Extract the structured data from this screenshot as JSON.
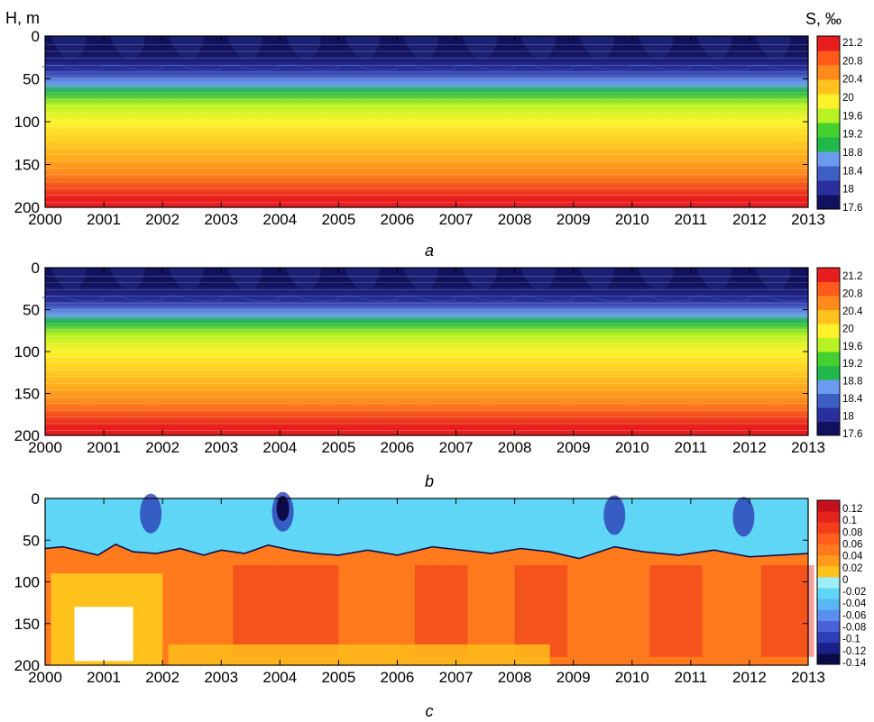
{
  "labels": {
    "y_axis": "H, m",
    "colorbar_unit": "S, ‰"
  },
  "chart_data": [
    {
      "type": "heatmap",
      "panel_letter": "a",
      "x_ticks": [
        "2000",
        "2001",
        "2002",
        "2003",
        "2004",
        "2005",
        "2006",
        "2007",
        "2008",
        "2009",
        "2010",
        "2011",
        "2012",
        "2013"
      ],
      "xlim": [
        2000,
        2013
      ],
      "y_ticks": [
        "0",
        "50",
        "100",
        "150",
        "200"
      ],
      "ylim": [
        200,
        0
      ],
      "colorbar_ticks": [
        "21.2",
        "20.8",
        "20.4",
        "20",
        "19.6",
        "19.2",
        "18.8",
        "18.4",
        "18",
        "17.6"
      ],
      "colorbar_range": [
        17.6,
        21.4
      ],
      "profile_depth": [
        0,
        20,
        40,
        55,
        65,
        80,
        100,
        130,
        160,
        190,
        200
      ],
      "profile_value": [
        17.75,
        17.9,
        18.2,
        18.55,
        18.95,
        19.5,
        19.95,
        20.4,
        20.75,
        21.1,
        21.2
      ],
      "colors": [
        "#11115e",
        "#29309e",
        "#3d5fc4",
        "#6b9bef",
        "#21b84a",
        "#44d12f",
        "#b6f224",
        "#fff22b",
        "#ffc11e",
        "#ff8a1c",
        "#ff5a1a",
        "#e81d1d"
      ]
    },
    {
      "type": "heatmap",
      "panel_letter": "b",
      "x_ticks": [
        "2000",
        "2001",
        "2002",
        "2003",
        "2004",
        "2005",
        "2006",
        "2007",
        "2008",
        "2009",
        "2010",
        "2011",
        "2012",
        "2013"
      ],
      "xlim": [
        2000,
        2013
      ],
      "y_ticks": [
        "0",
        "50",
        "100",
        "150",
        "200"
      ],
      "ylim": [
        200,
        0
      ],
      "colorbar_ticks": [
        "21.2",
        "20.8",
        "20.4",
        "20",
        "19.6",
        "19.2",
        "18.8",
        "18.4",
        "18",
        "17.6"
      ],
      "colorbar_range": [
        17.6,
        21.4
      ],
      "profile_depth": [
        0,
        20,
        40,
        55,
        65,
        80,
        100,
        130,
        160,
        190,
        200
      ],
      "profile_value": [
        17.75,
        17.9,
        18.2,
        18.55,
        18.95,
        19.5,
        19.95,
        20.4,
        20.75,
        21.1,
        21.2
      ],
      "colors": [
        "#11115e",
        "#29309e",
        "#3d5fc4",
        "#6b9bef",
        "#21b84a",
        "#44d12f",
        "#b6f224",
        "#fff22b",
        "#ffc11e",
        "#ff8a1c",
        "#ff5a1a",
        "#e81d1d"
      ]
    },
    {
      "type": "heatmap",
      "panel_letter": "c",
      "x_ticks": [
        "2000",
        "2001",
        "2002",
        "2003",
        "2004",
        "2005",
        "2006",
        "2007",
        "2008",
        "2009",
        "2010",
        "2011",
        "2012",
        "2013"
      ],
      "xlim": [
        2000,
        2013
      ],
      "y_ticks": [
        "0",
        "50",
        "100",
        "150",
        "200"
      ],
      "ylim": [
        200,
        0
      ],
      "colorbar_ticks": [
        "0.12",
        "0.1",
        "0.08",
        "0.06",
        "0.04",
        "0.02",
        "0",
        "-0.02",
        "-0.04",
        "-0.06",
        "-0.08",
        "-0.1",
        "-0.12",
        "-0.14"
      ],
      "colorbar_range": [
        -0.14,
        0.13
      ],
      "zero_contour_depth": [
        60,
        58,
        62,
        68,
        55,
        64,
        66,
        60,
        68,
        62,
        66,
        56,
        62,
        66,
        68,
        62,
        68,
        58,
        62,
        66,
        60,
        64,
        72,
        58,
        64,
        68,
        62,
        70,
        66
      ],
      "zero_contour_time": [
        2000.0,
        2000.3,
        2000.55,
        2000.9,
        2001.2,
        2001.5,
        2001.9,
        2002.3,
        2002.7,
        2003.0,
        2003.4,
        2003.8,
        2004.2,
        2004.6,
        2005.0,
        2005.5,
        2006.0,
        2006.6,
        2007.1,
        2007.6,
        2008.1,
        2008.6,
        2009.1,
        2009.7,
        2010.2,
        2010.8,
        2011.4,
        2012.0,
        2013.0
      ],
      "colors_negative": [
        "#0b0b4a",
        "#1a1f8a",
        "#2c3fb6",
        "#4a62d9",
        "#5a8ff0",
        "#58b6f4",
        "#5fd6f5",
        "#9deef7"
      ],
      "colors_positive": [
        "#ffc21c",
        "#ff9a1a",
        "#ff7a1c",
        "#ff5e1c",
        "#f53d1c",
        "#e5241e",
        "#c8101c"
      ]
    }
  ],
  "panel_labels": [
    "a",
    "b",
    "c"
  ]
}
